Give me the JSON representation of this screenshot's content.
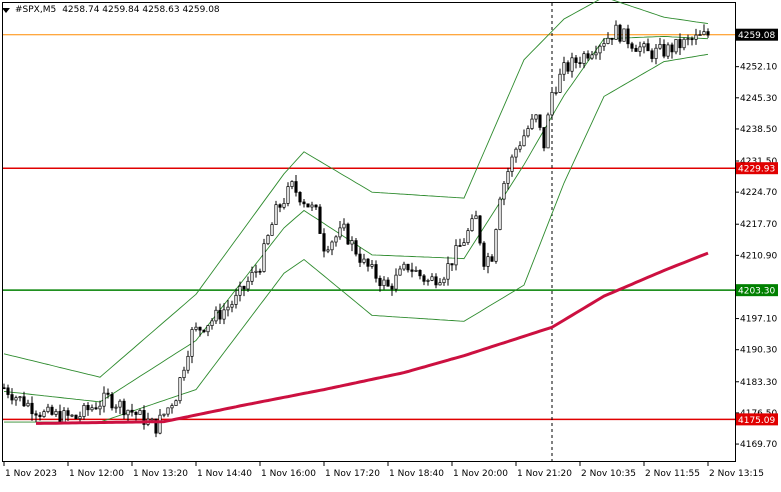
{
  "header": {
    "symbol": "#SPX,M5",
    "ohlc": "4258.74 4259.84 4258.63 4259.08"
  },
  "chart_data": {
    "type": "candlestick",
    "symbol": "#SPX",
    "timeframe": "M5",
    "ylim": [
      4166.0,
      4266.0
    ],
    "y_ticks": [
      "4259.08",
      "4252.10",
      "4245.30",
      "4238.50",
      "4231.50",
      "4224.70",
      "4217.70",
      "4210.90",
      "4203.30",
      "4197.10",
      "4190.30",
      "4183.30",
      "4176.50",
      "4169.70"
    ],
    "y_tick_values": [
      4259.08,
      4252.1,
      4245.3,
      4238.5,
      4231.5,
      4224.7,
      4217.7,
      4210.9,
      4203.3,
      4197.1,
      4190.3,
      4183.3,
      4176.5,
      4169.7
    ],
    "x_ticks": [
      "1 Nov 2023",
      "1 Nov 12:00",
      "1 Nov 13:20",
      "1 Nov 14:40",
      "1 Nov 16:00",
      "1 Nov 17:20",
      "1 Nov 18:40",
      "1 Nov 20:00",
      "1 Nov 21:20",
      "2 Nov 10:35",
      "2 Nov 11:55",
      "2 Nov 13:15"
    ],
    "x_tick_index": [
      0,
      16,
      32,
      48,
      64,
      80,
      96,
      112,
      128,
      144,
      160,
      176
    ],
    "num_bars": 177,
    "current_price": {
      "label": "4259.08",
      "value": 4259.08,
      "color": "#000000",
      "line_color": "#ff8c00"
    },
    "horizontal_levels": [
      {
        "label": "4229.93",
        "value": 4229.93,
        "color": "#e00000"
      },
      {
        "label": "4203.30",
        "value": 4203.3,
        "color": "#008000"
      },
      {
        "label": "4175.09",
        "value": 4175.09,
        "color": "#e00000"
      }
    ],
    "vertical_marker_index": 137,
    "moving_average": {
      "color": "#cc1040",
      "points": [
        [
          8,
          4174.2
        ],
        [
          40,
          4174.6
        ],
        [
          60,
          4178.2
        ],
        [
          80,
          4181.6
        ],
        [
          100,
          4185.3
        ],
        [
          115,
          4189.0
        ],
        [
          137,
          4195.2
        ],
        [
          150,
          4202.0
        ],
        [
          165,
          4207.6
        ],
        [
          176,
          4211.4
        ]
      ]
    },
    "bollinger_color": "#2e8b2e",
    "bollinger_upper": [
      [
        0,
        4189.4
      ],
      [
        24,
        4184.3
      ],
      [
        48,
        4202.4
      ],
      [
        70,
        4228.7
      ],
      [
        75,
        4233.5
      ],
      [
        92,
        4224.7
      ],
      [
        115,
        4223.4
      ],
      [
        130,
        4253.6
      ],
      [
        140,
        4262.5
      ],
      [
        150,
        4267.3
      ],
      [
        165,
        4262.9
      ],
      [
        176,
        4261.5
      ]
    ],
    "bollinger_middle": [
      [
        0,
        4181.2
      ],
      [
        24,
        4178.9
      ],
      [
        48,
        4192.3
      ],
      [
        70,
        4216.9
      ],
      [
        75,
        4220.7
      ],
      [
        92,
        4211.0
      ],
      [
        115,
        4210.2
      ],
      [
        130,
        4230.7
      ],
      [
        140,
        4245.8
      ],
      [
        150,
        4258.2
      ],
      [
        165,
        4258.7
      ],
      [
        176,
        4258.2
      ]
    ],
    "bollinger_lower": [
      [
        0,
        4174.5
      ],
      [
        24,
        4174.5
      ],
      [
        48,
        4181.6
      ],
      [
        70,
        4207.0
      ],
      [
        75,
        4210.0
      ],
      [
        92,
        4197.8
      ],
      [
        115,
        4196.5
      ],
      [
        130,
        4204.4
      ],
      [
        140,
        4226.7
      ],
      [
        150,
        4245.6
      ],
      [
        165,
        4253.2
      ],
      [
        176,
        4254.8
      ]
    ],
    "price_anchors": [
      [
        0,
        4182.0
      ],
      [
        4,
        4179.5
      ],
      [
        10,
        4176.2
      ],
      [
        18,
        4175.4
      ],
      [
        22,
        4177.8
      ],
      [
        26,
        4179.7
      ],
      [
        32,
        4176.8
      ],
      [
        38,
        4173.5
      ],
      [
        43,
        4180.4
      ],
      [
        47,
        4193.9
      ],
      [
        52,
        4196.8
      ],
      [
        58,
        4201.2
      ],
      [
        64,
        4208.9
      ],
      [
        68,
        4220.4
      ],
      [
        72,
        4225.9
      ],
      [
        78,
        4220.1
      ],
      [
        80,
        4213.1
      ],
      [
        85,
        4216.2
      ],
      [
        90,
        4209.1
      ],
      [
        96,
        4203.8
      ],
      [
        101,
        4208.6
      ],
      [
        106,
        4205.2
      ],
      [
        110,
        4207.1
      ],
      [
        114,
        4212.8
      ],
      [
        118,
        4218.9
      ],
      [
        120,
        4210.0
      ],
      [
        122,
        4211.0
      ],
      [
        124,
        4224.5
      ],
      [
        128,
        4234.2
      ],
      [
        131,
        4238.6
      ],
      [
        133,
        4240.8
      ],
      [
        135,
        4235.1
      ],
      [
        137,
        4246.5
      ],
      [
        140,
        4251.4
      ],
      [
        144,
        4253.9
      ],
      [
        148,
        4256.8
      ],
      [
        153,
        4259.9
      ],
      [
        157,
        4257.4
      ],
      [
        161,
        4255.0
      ],
      [
        165,
        4255.5
      ],
      [
        170,
        4257.2
      ],
      [
        176,
        4259.1
      ]
    ]
  }
}
